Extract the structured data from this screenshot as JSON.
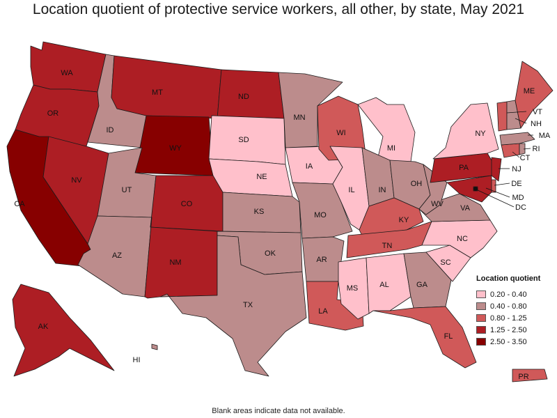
{
  "title": "Location quotient of protective service workers, all other, by state, May 2021",
  "footnote": "Blank areas indicate data not available.",
  "legend": {
    "title": "Location quotient",
    "bins": [
      {
        "label": "0.20 - 0.40",
        "color": "#ffc0cb"
      },
      {
        "label": "0.40 - 0.80",
        "color": "#bc8c8c"
      },
      {
        "label": "0.80 - 1.25",
        "color": "#d05959"
      },
      {
        "label": "1.25 - 2.50",
        "color": "#ad1e24"
      },
      {
        "label": "2.50 - 3.50",
        "color": "#870000"
      }
    ]
  },
  "states": [
    {
      "code": "WA",
      "bin": 3
    },
    {
      "code": "OR",
      "bin": 3
    },
    {
      "code": "CA",
      "bin": 4
    },
    {
      "code": "NV",
      "bin": 3
    },
    {
      "code": "ID",
      "bin": 1
    },
    {
      "code": "MT",
      "bin": 3
    },
    {
      "code": "WY",
      "bin": 4
    },
    {
      "code": "UT",
      "bin": 1
    },
    {
      "code": "AZ",
      "bin": 1
    },
    {
      "code": "CO",
      "bin": 3
    },
    {
      "code": "NM",
      "bin": 3
    },
    {
      "code": "ND",
      "bin": 3
    },
    {
      "code": "SD",
      "bin": 0
    },
    {
      "code": "NE",
      "bin": 0
    },
    {
      "code": "KS",
      "bin": 1
    },
    {
      "code": "OK",
      "bin": 1
    },
    {
      "code": "TX",
      "bin": 1
    },
    {
      "code": "MN",
      "bin": 1
    },
    {
      "code": "IA",
      "bin": 0
    },
    {
      "code": "MO",
      "bin": 1
    },
    {
      "code": "AR",
      "bin": 1
    },
    {
      "code": "LA",
      "bin": 2
    },
    {
      "code": "WI",
      "bin": 2
    },
    {
      "code": "IL",
      "bin": 0
    },
    {
      "code": "MI",
      "bin": 0
    },
    {
      "code": "IN",
      "bin": 1
    },
    {
      "code": "OH",
      "bin": 1
    },
    {
      "code": "KY",
      "bin": 2
    },
    {
      "code": "TN",
      "bin": 2
    },
    {
      "code": "MS",
      "bin": 0
    },
    {
      "code": "AL",
      "bin": 0
    },
    {
      "code": "GA",
      "bin": 1
    },
    {
      "code": "FL",
      "bin": 2
    },
    {
      "code": "SC",
      "bin": 0
    },
    {
      "code": "NC",
      "bin": 0
    },
    {
      "code": "VA",
      "bin": 1
    },
    {
      "code": "WV",
      "bin": 1
    },
    {
      "code": "PA",
      "bin": 3
    },
    {
      "code": "NY",
      "bin": 0
    },
    {
      "code": "NJ",
      "bin": 3
    },
    {
      "code": "DE",
      "bin": 2
    },
    {
      "code": "MD",
      "bin": 3
    },
    {
      "code": "DC",
      "bin": 4
    },
    {
      "code": "CT",
      "bin": 2
    },
    {
      "code": "RI",
      "bin": 1
    },
    {
      "code": "MA",
      "bin": 1
    },
    {
      "code": "VT",
      "bin": 2
    },
    {
      "code": "NH",
      "bin": 1
    },
    {
      "code": "ME",
      "bin": 2
    },
    {
      "code": "AK",
      "bin": 3
    },
    {
      "code": "HI",
      "bin": 1
    },
    {
      "code": "PR",
      "bin": 2
    }
  ]
}
